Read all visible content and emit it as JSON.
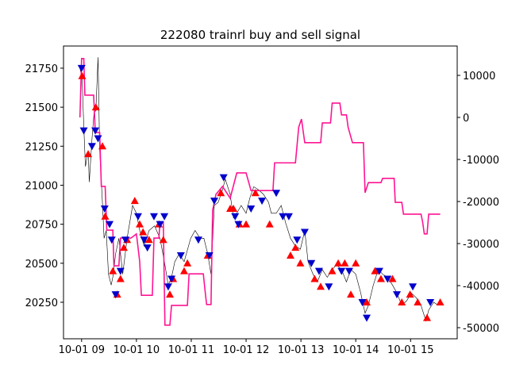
{
  "chart_data": {
    "type": "line",
    "title": "222080 trainrl buy and sell signal",
    "xlim": [
      8.67,
      15.85
    ],
    "ylim": [
      20016,
      21892
    ],
    "y2lim": [
      -52642,
      16981
    ],
    "xticks": [
      {
        "value": 9,
        "label": "10-01 09"
      },
      {
        "value": 10,
        "label": "10-01 10"
      },
      {
        "value": 11,
        "label": "10-01 11"
      },
      {
        "value": 12,
        "label": "10-01 12"
      },
      {
        "value": 13,
        "label": "10-01 13"
      },
      {
        "value": 14,
        "label": "10-01 14"
      },
      {
        "value": 15,
        "label": "10-01 15"
      }
    ],
    "yticks": [
      20250,
      20500,
      20750,
      21000,
      21250,
      21500,
      21750
    ],
    "y2ticks": [
      -50000,
      -40000,
      -30000,
      -20000,
      -10000,
      0,
      10000
    ],
    "series": [
      {
        "kind": "line",
        "color": "#000000",
        "width": 0.6,
        "x": [
          8.97,
          9.01,
          9.04,
          9.07,
          9.12,
          9.14,
          9.19,
          9.23,
          9.26,
          9.3,
          9.33,
          9.38,
          9.41,
          9.45,
          9.49,
          9.54,
          9.58,
          9.62,
          9.68,
          9.75,
          9.83,
          9.93,
          10.0,
          10.06,
          10.14,
          10.23,
          10.33,
          10.43,
          10.51,
          10.58,
          10.64,
          10.7,
          10.78,
          10.87,
          10.99,
          11.07,
          11.16,
          11.23,
          11.3,
          11.36,
          11.42,
          11.49,
          11.57,
          11.62,
          11.71,
          11.77,
          11.83,
          11.91,
          12.0,
          12.07,
          12.14,
          12.23,
          12.32,
          12.41,
          12.46,
          12.55,
          12.64,
          12.72,
          12.81,
          12.9,
          12.99,
          13.07,
          13.13,
          13.22,
          13.3,
          13.39,
          13.48,
          13.57,
          13.65,
          13.74,
          13.83,
          13.91,
          14.0,
          14.09,
          14.17,
          14.23,
          14.32,
          14.41,
          14.49,
          14.58,
          14.67,
          14.75,
          14.84,
          14.93,
          15.01,
          15.1,
          15.19,
          15.28,
          15.33,
          15.42,
          15.51
        ],
        "values": [
          21750,
          21680,
          21375,
          21120,
          21220,
          21020,
          21300,
          21475,
          21475,
          21820,
          21220,
          20890,
          20660,
          20710,
          20430,
          20360,
          20430,
          20560,
          20660,
          20430,
          20660,
          20870,
          20820,
          20710,
          20610,
          20710,
          20740,
          20660,
          20510,
          20360,
          20410,
          20510,
          20560,
          20510,
          20660,
          20710,
          20660,
          20660,
          20560,
          20430,
          20870,
          20890,
          20970,
          21040,
          20940,
          20790,
          20820,
          20870,
          20820,
          20920,
          20990,
          20970,
          20940,
          20890,
          20820,
          20820,
          20870,
          20760,
          20660,
          20610,
          20590,
          20710,
          20510,
          20430,
          20380,
          20460,
          20410,
          20460,
          20490,
          20460,
          20380,
          20460,
          20430,
          20310,
          20180,
          20230,
          20360,
          20460,
          20430,
          20410,
          20360,
          20310,
          20230,
          20260,
          20310,
          20280,
          20230,
          20130,
          20200,
          20250,
          20230
        ]
      },
      {
        "kind": "line",
        "axis": "y2",
        "color": "#ff1493",
        "width": 1.6,
        "x": [
          8.97,
          9.0,
          9.04,
          9.06,
          9.22,
          9.25,
          9.33,
          9.36,
          9.43,
          9.46,
          9.57,
          9.59,
          9.68,
          9.71,
          9.9,
          10.0,
          10.06,
          10.09,
          10.29,
          10.32,
          10.41,
          10.43,
          10.49,
          10.52,
          10.61,
          10.64,
          10.93,
          10.96,
          11.22,
          11.25,
          11.28,
          11.36,
          11.39,
          11.45,
          11.57,
          11.71,
          11.83,
          12.0,
          12.09,
          12.49,
          12.52,
          12.9,
          12.96,
          13.01,
          13.07,
          13.36,
          13.39,
          13.54,
          13.57,
          13.71,
          13.74,
          13.83,
          13.86,
          13.94,
          14.14,
          14.17,
          14.23,
          14.46,
          14.49,
          14.7,
          14.72,
          14.84,
          14.87,
          15.19,
          15.22,
          15.25,
          15.3,
          15.33,
          15.54
        ],
        "values": [
          0,
          14000,
          14000,
          5300,
          5300,
          -3600,
          -3600,
          -16400,
          -16400,
          -26800,
          -26800,
          -35300,
          -35300,
          -28700,
          -28700,
          -27700,
          -34300,
          -42300,
          -42300,
          -28700,
          -28700,
          -24900,
          -24900,
          -49400,
          -49400,
          -44700,
          -44700,
          -37200,
          -37200,
          -41000,
          -44500,
          -44500,
          -22100,
          -18300,
          -16400,
          -19200,
          -13200,
          -13200,
          -17400,
          -17400,
          -10800,
          -10800,
          -2300,
          -400,
          -6000,
          -6000,
          -1300,
          -1300,
          3400,
          3400,
          600,
          600,
          -2300,
          -6000,
          -6000,
          -17900,
          -15500,
          -15500,
          -14500,
          -14500,
          -20200,
          -20200,
          -23000,
          -23000,
          -24900,
          -27700,
          -27700,
          -23000,
          -23000
        ]
      },
      {
        "kind": "scatter",
        "marker": "triangle-up",
        "color": "#ff0000",
        "x": [
          9.01,
          9.12,
          9.26,
          9.38,
          9.43,
          9.57,
          9.65,
          9.71,
          9.77,
          9.83,
          9.97,
          10.06,
          10.12,
          10.23,
          10.41,
          10.49,
          10.61,
          10.67,
          10.87,
          10.93,
          11.3,
          11.54,
          11.71,
          11.77,
          11.88,
          12.0,
          12.17,
          12.43,
          12.81,
          12.9,
          12.99,
          13.25,
          13.36,
          13.57,
          13.68,
          13.8,
          13.91,
          14.0,
          14.2,
          14.35,
          14.46,
          14.67,
          14.84,
          14.99,
          15.13,
          15.3,
          15.54
        ],
        "values": [
          21700,
          21200,
          21500,
          21250,
          20800,
          20450,
          20300,
          20400,
          20600,
          20650,
          20900,
          20750,
          20700,
          20650,
          20750,
          20650,
          20300,
          20400,
          20450,
          20500,
          20550,
          20950,
          20850,
          20850,
          20750,
          20750,
          20950,
          20750,
          20550,
          20600,
          20500,
          20400,
          20350,
          20450,
          20500,
          20500,
          20300,
          20500,
          20250,
          20450,
          20400,
          20400,
          20250,
          20300,
          20250,
          20150,
          20250
        ]
      },
      {
        "kind": "scatter",
        "marker": "triangle-down",
        "color": "#0000cc",
        "x": [
          9.0,
          9.04,
          9.19,
          9.25,
          9.3,
          9.42,
          9.51,
          9.55,
          9.62,
          9.71,
          9.8,
          10.03,
          10.14,
          10.2,
          10.32,
          10.43,
          10.51,
          10.58,
          10.64,
          10.81,
          11.13,
          11.33,
          11.42,
          11.59,
          11.8,
          11.86,
          12.09,
          12.29,
          12.55,
          12.67,
          12.78,
          12.93,
          13.07,
          13.19,
          13.33,
          13.51,
          13.74,
          13.88,
          14.12,
          14.2,
          14.43,
          14.58,
          14.75,
          15.04,
          15.36
        ],
        "values": [
          21750,
          21350,
          21250,
          21350,
          21300,
          20850,
          20750,
          20650,
          20300,
          20450,
          20650,
          20800,
          20650,
          20600,
          20800,
          20750,
          20800,
          20350,
          20400,
          20550,
          20650,
          20550,
          20900,
          21050,
          20800,
          20750,
          20850,
          20900,
          20950,
          20800,
          20800,
          20650,
          20700,
          20500,
          20450,
          20350,
          20450,
          20450,
          20250,
          20150,
          20450,
          20400,
          20300,
          20350,
          20250
        ]
      }
    ]
  }
}
